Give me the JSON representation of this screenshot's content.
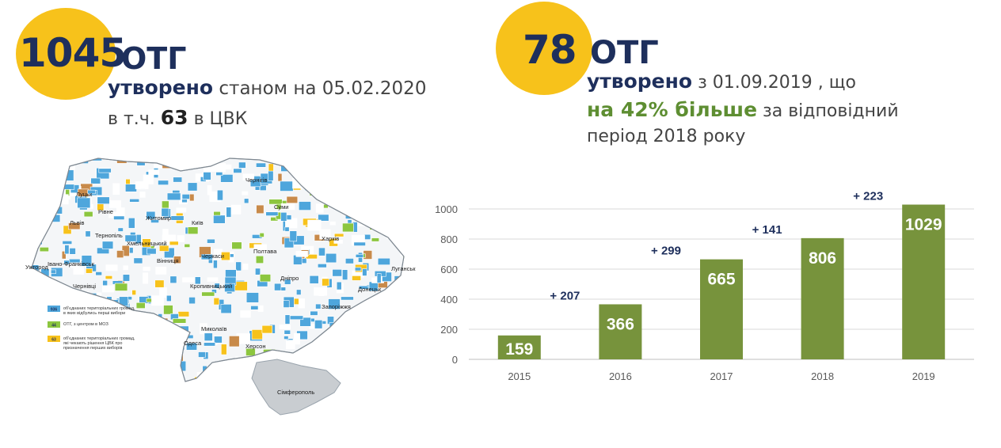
{
  "left_block": {
    "count": "1045",
    "unit": "ОТГ",
    "created_word": "утворено",
    "as_of": "станом на 05.02.2020",
    "incl_prefix": "в т.ч.",
    "incl_number": "63",
    "incl_suffix": "в ЦВК"
  },
  "right_block": {
    "count": "78",
    "unit": "ОТГ",
    "created_word": "утворено",
    "since": "з 01.09.2019 , що",
    "more_highlight": "на 42% більше",
    "more_rest": "за відповідний",
    "period": "період 2018 року"
  },
  "map": {
    "cities": [
      "Чернігів",
      "Луцьк",
      "Рівне",
      "Житомир",
      "Київ",
      "Суми",
      "Львів",
      "Харків",
      "Тернопіль",
      "Хмельницький",
      "Полтава",
      "Луганськ",
      "Ужгород",
      "Івано-Франківськ",
      "Вінниця",
      "Черкаси",
      "Дніпро",
      "Чернівці",
      "Кропивницький",
      "Донецьк",
      "Запоріжжя",
      "Миколаїв",
      "Одеса",
      "Херсон",
      "Сімферополь"
    ],
    "legend": [
      {
        "count": "936",
        "text_1": "об'єднаних територіальних громад,",
        "text_2": "в яких відбулись перші вибори",
        "color": "#4ea6dc"
      },
      {
        "count": "44",
        "text_1": "ОТГ, з центром в МОЗ",
        "text_2": "",
        "color": "#8cc63f"
      },
      {
        "count": "63",
        "text_1": "об'єднаних територіальних громад,",
        "text_2": "які чекають рішення ЦВК про",
        "text_3": "призначення перших виборів",
        "color": "#f7c21b"
      }
    ]
  },
  "chart_data": {
    "type": "bar",
    "categories": [
      "2015",
      "2016",
      "2017",
      "2018",
      "2019"
    ],
    "values": [
      159,
      366,
      665,
      806,
      1029
    ],
    "increments": [
      "+ 207",
      "+ 299",
      "+ 141",
      "+ 223"
    ],
    "ylim": [
      0,
      1000
    ],
    "yticks": [
      0,
      200,
      400,
      600,
      800,
      1000
    ],
    "grid": true,
    "bar_color": "#77933c",
    "title": "",
    "xlabel": "",
    "ylabel": ""
  }
}
